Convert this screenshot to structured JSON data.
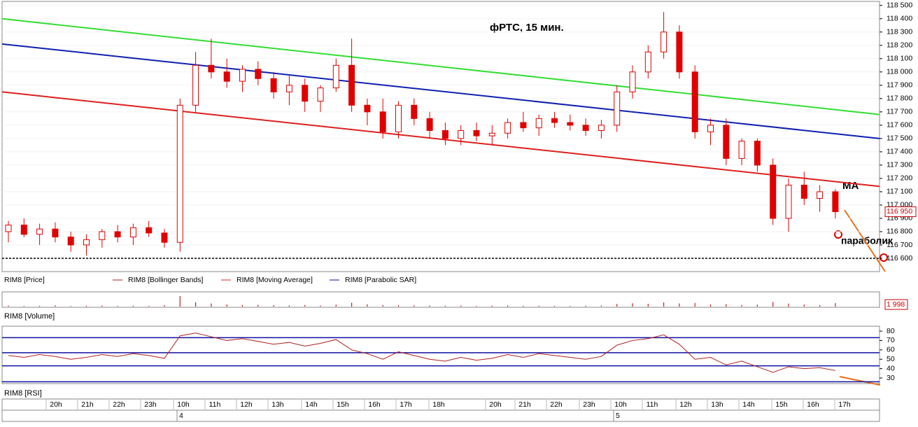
{
  "chart_data": [
    {
      "type": "candlestick",
      "title": "фРТС, 15 мин.",
      "series": [
        {
          "name": "RIM8 [Price]",
          "color": "#e00000",
          "open": [
            116800,
            116850,
            116780,
            116820,
            116760,
            116700,
            116740,
            116800,
            116760,
            116830,
            116790,
            116720,
            117750,
            118050,
            118000,
            117930,
            118020,
            117950,
            117850,
            117900,
            117780,
            117880,
            118050,
            117750,
            117700,
            117550,
            117750,
            117650,
            117560,
            117500,
            117560,
            117520,
            117540,
            117620,
            117580,
            117650,
            117620,
            117600,
            117560,
            117600,
            117850,
            118000,
            118150,
            118300,
            118000,
            117550,
            117600,
            117350,
            117480,
            117300,
            116900,
            117150,
            117050,
            117100
          ],
          "high": [
            116880,
            116900,
            116860,
            116870,
            116800,
            116780,
            116820,
            116850,
            116860,
            116880,
            116820,
            117800,
            118150,
            118250,
            118100,
            118050,
            118080,
            118000,
            117980,
            117950,
            117900,
            118100,
            118250,
            117800,
            117800,
            117780,
            117800,
            117700,
            117620,
            117600,
            117620,
            117600,
            117650,
            117700,
            117680,
            117700,
            117680,
            117650,
            117640,
            117900,
            118050,
            118200,
            118450,
            118350,
            118050,
            117650,
            117650,
            117500,
            117500,
            117350,
            117200,
            117250,
            117150,
            117120
          ],
          "low": [
            116720,
            116760,
            116700,
            116720,
            116650,
            116620,
            116680,
            116720,
            116700,
            116760,
            116680,
            116650,
            117700,
            117950,
            117880,
            117850,
            117900,
            117800,
            117750,
            117700,
            117700,
            117850,
            117700,
            117600,
            117500,
            117500,
            117600,
            117500,
            117450,
            117450,
            117480,
            117450,
            117500,
            117550,
            117520,
            117580,
            117560,
            117520,
            117500,
            117550,
            117800,
            117950,
            118100,
            117950,
            117500,
            117450,
            117300,
            117300,
            117250,
            116850,
            116800,
            117000,
            116950,
            116900
          ],
          "close": [
            116850,
            116780,
            116820,
            116760,
            116700,
            116740,
            116800,
            116760,
            116830,
            116790,
            116720,
            117750,
            118050,
            118000,
            117930,
            118020,
            117950,
            117850,
            117900,
            117780,
            117880,
            118050,
            117750,
            117700,
            117550,
            117750,
            117650,
            117560,
            117500,
            117560,
            117520,
            117540,
            117620,
            117580,
            117650,
            117620,
            117600,
            117560,
            117600,
            117850,
            118000,
            118150,
            118300,
            118000,
            117550,
            117600,
            117350,
            117480,
            117300,
            116900,
            117150,
            117050,
            117100,
            116950
          ]
        }
      ],
      "legend": [
        {
          "name": "RIM8 [Price]",
          "color": "#e00000"
        },
        {
          "name": "RIM8 [Bollinger Bands]",
          "color": "#b02020"
        },
        {
          "name": "RIM8 [Moving Average]",
          "color": "#c03030"
        },
        {
          "name": "RIM8 [Parabolic SAR]",
          "color": "#1010a0"
        }
      ],
      "lines": [
        {
          "color": "#33dd33",
          "values": [
            118400,
            117680
          ]
        },
        {
          "color": "#1020b0",
          "values": [
            118210,
            117500
          ]
        },
        {
          "color": "#dd2020",
          "values": [
            117850,
            117140
          ]
        },
        {
          "color": "#000000",
          "values": [
            116600,
            116600
          ],
          "style": "dashed"
        }
      ],
      "annotations": [
        "MA",
        "параболик"
      ],
      "current_value": {
        "value": 116950,
        "label": "116 950"
      },
      "ylim": [
        116500,
        118530
      ],
      "yticks": [
        {
          "value": 116600,
          "label": "116 600"
        },
        {
          "value": 116700,
          "label": "116 700"
        },
        {
          "value": 116800,
          "label": "116 800"
        },
        {
          "value": 116900,
          "label": "116 900"
        },
        {
          "value": 117000,
          "label": "117 000"
        },
        {
          "value": 117100,
          "label": "117 100"
        },
        {
          "value": 117200,
          "label": "117 200"
        },
        {
          "value": 117300,
          "label": "117 300"
        },
        {
          "value": 117400,
          "label": "117 400"
        },
        {
          "value": 117500,
          "label": "117 500"
        },
        {
          "value": 117600,
          "label": "117 600"
        },
        {
          "value": 117700,
          "label": "117 700"
        },
        {
          "value": 117800,
          "label": "117 800"
        },
        {
          "value": 117900,
          "label": "117 900"
        },
        {
          "value": 118000,
          "label": "118 000"
        },
        {
          "value": 118100,
          "label": "118 100"
        },
        {
          "value": 118200,
          "label": "118 200"
        },
        {
          "value": 118300,
          "label": "118 300"
        },
        {
          "value": 118400,
          "label": "118 400"
        },
        {
          "value": 118500,
          "label": "118 500"
        }
      ],
      "grid": true
    },
    {
      "type": "bar",
      "label": "RIM8 [Volume]",
      "color": "#c02020",
      "values": [
        600,
        400,
        500,
        700,
        300,
        450,
        600,
        350,
        500,
        400,
        800,
        6000,
        2500,
        1800,
        1200,
        900,
        1000,
        800,
        700,
        900,
        600,
        1100,
        2200,
        1300,
        900,
        800,
        700,
        600,
        500,
        600,
        400,
        500,
        700,
        450,
        500,
        400,
        350,
        500,
        600,
        1500,
        1900,
        1600,
        2400,
        1800,
        2100,
        1200,
        1400,
        900,
        1100,
        2600,
        1700,
        1200,
        900,
        1998
      ],
      "current_value": {
        "value": 1998,
        "label": "1 998"
      },
      "ylim": [
        0,
        8000
      ]
    },
    {
      "type": "line",
      "label": "RIM8 [RSI]",
      "color": "#b02020",
      "values": [
        54,
        52,
        55,
        53,
        50,
        52,
        55,
        53,
        56,
        54,
        51,
        75,
        78,
        74,
        70,
        72,
        69,
        66,
        68,
        64,
        67,
        71,
        60,
        56,
        50,
        58,
        54,
        50,
        48,
        52,
        49,
        51,
        55,
        52,
        56,
        54,
        52,
        50,
        53,
        65,
        70,
        72,
        76,
        66,
        50,
        52,
        44,
        48,
        42,
        36,
        42,
        40,
        41,
        38
      ],
      "levels": [
        73,
        57,
        43,
        26
      ],
      "levels_color": "#1010a0",
      "ylim": [
        24.8,
        84.5
      ],
      "yticks": [
        30,
        40,
        50,
        60,
        70,
        80
      ]
    }
  ],
  "time_axis": {
    "labels": [
      "20h",
      "21h",
      "22h",
      "23h",
      "10h",
      "11h",
      "12h",
      "13h",
      "14h",
      "15h",
      "16h",
      "17h",
      "18h",
      "20h",
      "21h",
      "22h",
      "23h",
      "10h",
      "11h",
      "12h",
      "13h",
      "14h",
      "15h",
      "16h",
      "17h"
    ],
    "days": [
      "4",
      "5"
    ]
  }
}
